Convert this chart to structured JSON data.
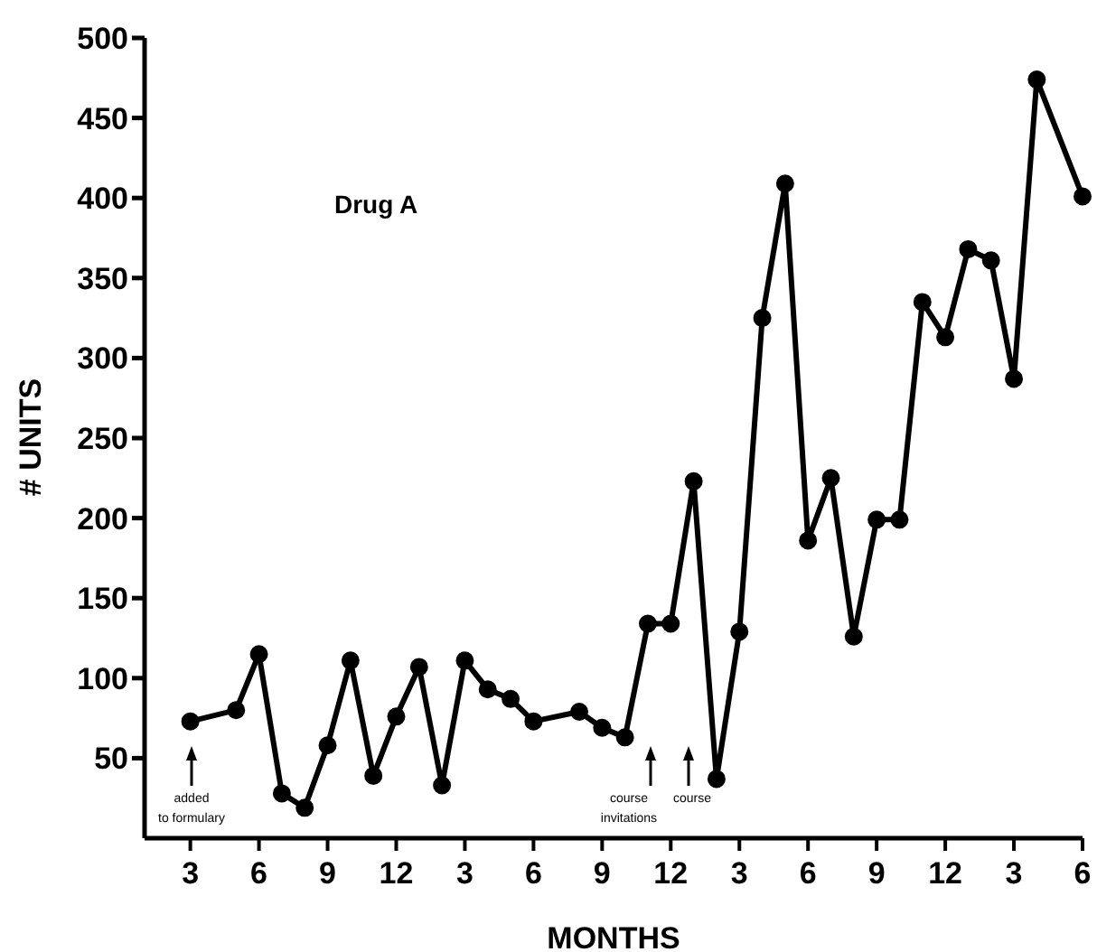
{
  "chart_data": {
    "type": "line",
    "title": "Drug A",
    "xlabel": "MONTHS",
    "ylabel": "# UNITS",
    "categories": [
      null,
      null,
      "3",
      null,
      null,
      "6",
      null,
      null,
      "9",
      null,
      null,
      "12",
      null,
      null,
      "3",
      null,
      null,
      "6",
      null,
      null,
      "9",
      null,
      null,
      "12",
      null,
      null,
      "3",
      null,
      null,
      "6",
      null,
      null,
      "9",
      null,
      null,
      "12",
      null,
      null,
      "3",
      null,
      null,
      "6"
    ],
    "series": [
      {
        "color": "#000000",
        "values": [
          null,
          null,
          73,
          null,
          80,
          115,
          28,
          19,
          58,
          111,
          39,
          76,
          107,
          33,
          111,
          93,
          87,
          73,
          null,
          79,
          69,
          63,
          134,
          134,
          223,
          37,
          129,
          325,
          409,
          186,
          225,
          126,
          199,
          199,
          335,
          313,
          368,
          361,
          287,
          474,
          null,
          401
        ]
      }
    ],
    "ylim": [
      0,
      500
    ],
    "yticks": [
      50,
      100,
      150,
      200,
      250,
      300,
      350,
      400,
      450,
      500
    ],
    "annotations": [
      "added to formulary",
      "course invitations",
      "course"
    ],
    "grid": false,
    "legend": false,
    "marker": "circle",
    "line_style": "solid"
  }
}
